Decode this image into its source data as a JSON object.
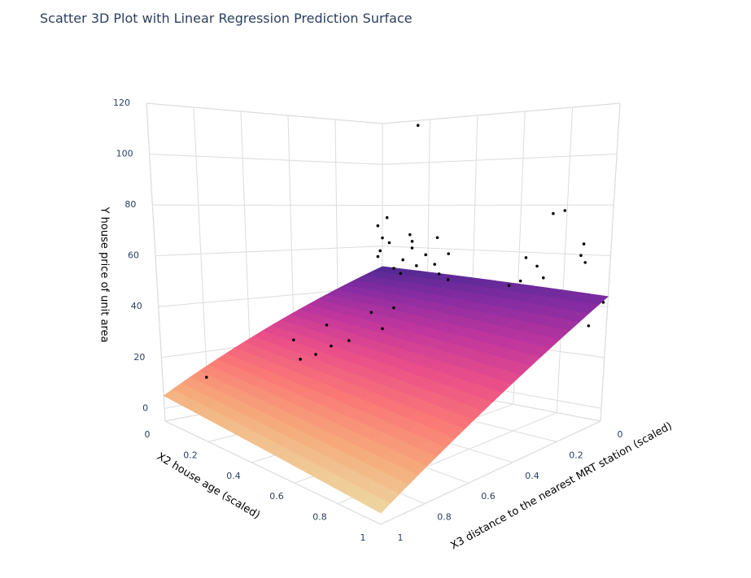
{
  "chart_data": {
    "type": "scatter3d",
    "title": "Scatter 3D Plot with Linear Regression Prediction Surface",
    "xaxis_title": "X2 house age (scaled)",
    "yaxis_title": "X3 distance to the nearest MRT station (scaled)",
    "zaxis_title": "Y house price of unit area",
    "xlim": [
      0,
      1
    ],
    "ylim": [
      0,
      1
    ],
    "zlim": [
      -5,
      120
    ],
    "xticks": [
      0,
      0.2,
      0.4,
      0.6,
      0.8,
      1
    ],
    "yticks": [
      0,
      0.2,
      0.4,
      0.6,
      0.8,
      1
    ],
    "zticks": [
      0,
      20,
      40,
      60,
      80,
      100,
      120
    ],
    "grid": true,
    "marker_color": "#000000",
    "x": [
      0.0,
      0.02,
      0.05,
      0.08,
      0.1,
      0.12,
      0.15,
      0.18,
      0.2,
      0.22,
      0.25,
      0.28,
      0.3,
      0.33,
      0.35,
      0.03,
      0.0,
      0.0,
      0.12,
      0.14,
      0.24,
      0.3,
      0.38,
      0.4,
      0.42,
      0.45,
      0.17,
      0.06,
      0.1,
      0.26,
      0.55,
      0.58,
      0.6,
      0.62,
      0.65,
      0.68,
      0.7,
      0.72,
      0.74,
      0.76,
      0.8,
      0.78,
      0.82,
      0.85,
      0.88,
      0.9,
      0.92,
      0.95,
      0.97,
      0.99,
      0.7,
      0.64,
      0.3,
      0.32,
      0.25,
      0.35,
      0.2,
      0.15,
      0.45,
      0.5,
      0.55,
      0.48,
      0.52,
      0.6,
      0.58,
      0.4,
      0.42,
      0.1,
      0.05,
      0.2,
      0.7,
      0.62,
      0.25,
      0.3
    ],
    "y": [
      0.02,
      0.03,
      0.02,
      0.03,
      0.01,
      0.04,
      0.02,
      0.03,
      0.01,
      0.05,
      0.02,
      0.03,
      0.02,
      0.04,
      0.02,
      0.01,
      0.02,
      0.0,
      0.0,
      0.01,
      0.0,
      0.01,
      0.03,
      0.02,
      0.01,
      0.02,
      0.02,
      0.06,
      0.05,
      0.04,
      0.03,
      0.02,
      0.04,
      0.01,
      0.03,
      0.02,
      0.05,
      0.01,
      0.03,
      0.02,
      0.01,
      0.04,
      0.02,
      0.03,
      0.01,
      0.02,
      0.03,
      0.02,
      0.05,
      0.01,
      0.02,
      0.01,
      0.6,
      0.55,
      0.62,
      0.5,
      0.45,
      0.55,
      0.55,
      0.5,
      0.45,
      0.6,
      0.55,
      0.5,
      0.4,
      0.4,
      0.35,
      0.8,
      0.85,
      0.85,
      0.7,
      0.3,
      0.3,
      0.25
    ],
    "z": [
      55,
      58,
      62,
      50,
      54,
      48,
      60,
      52,
      57,
      46,
      53,
      49,
      44,
      47,
      42,
      74,
      70,
      64,
      66,
      63,
      65,
      58,
      40,
      45,
      43,
      38,
      117.5,
      45,
      42,
      41,
      42,
      46,
      40,
      48,
      38,
      44,
      36,
      50,
      41,
      77,
      78,
      39,
      43,
      37,
      60,
      65,
      58,
      40,
      34,
      42,
      55,
      58,
      25,
      28,
      22,
      30,
      32,
      26,
      18,
      20,
      22,
      15,
      14,
      16,
      24,
      34,
      30,
      13,
      12,
      8,
      12,
      27,
      36,
      38
    ],
    "surface": {
      "x": [
        0,
        1
      ],
      "y": [
        0,
        1
      ],
      "z": [
        [
          50,
          44
        ],
        [
          5,
          -1
        ]
      ],
      "colorscale": [
        "#edd9a3",
        "#f6a97a",
        "#fa7876",
        "#ea4f88",
        "#c0369d",
        "#872ca2",
        "#4b2991"
      ]
    }
  }
}
